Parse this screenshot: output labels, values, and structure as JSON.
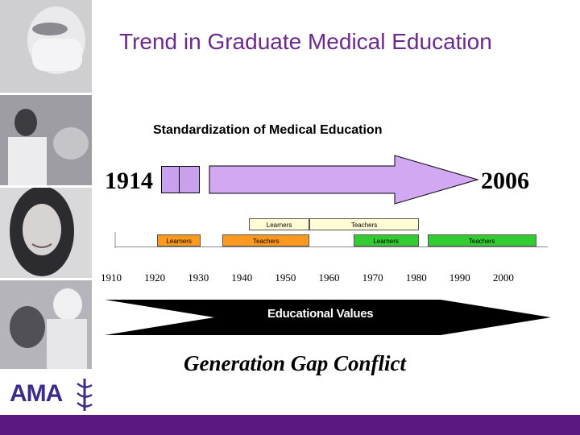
{
  "slide": {
    "title": "Trend in Graduate Medical Education",
    "subtitle": "Standardization of Medical Education",
    "start_year": "1914",
    "end_year": "2006",
    "educational_values": "Educational Values",
    "generation_gap": "Generation Gap Conflict",
    "logo_text": "AMA"
  },
  "timeline": {
    "ticks": [
      "1910",
      "1920",
      "1930",
      "1940",
      "1950",
      "1960",
      "1970",
      "1980",
      "1990",
      "2000"
    ],
    "upper_row": [
      {
        "label": "Learners",
        "start": 1941,
        "end": 1955,
        "color": "#fffdd6"
      },
      {
        "label": "Teachers",
        "start": 1955,
        "end": 1980,
        "color": "#fffdd6"
      }
    ],
    "lower_row": [
      {
        "label": "Learners",
        "start": 1920,
        "end": 1930,
        "color": "#ff9a1f"
      },
      {
        "label": "Teachers",
        "start": 1935,
        "end": 1955,
        "color": "#ff9a1f"
      },
      {
        "label": "Learners",
        "start": 1965,
        "end": 1980,
        "color": "#33cc33"
      },
      {
        "label": "Teachers",
        "start": 1982,
        "end": 2007,
        "color": "#33cc33"
      }
    ]
  },
  "colors": {
    "title": "#6b2a8a",
    "arrow_fill": "#d2a8f2",
    "footer": "#5b1780"
  }
}
